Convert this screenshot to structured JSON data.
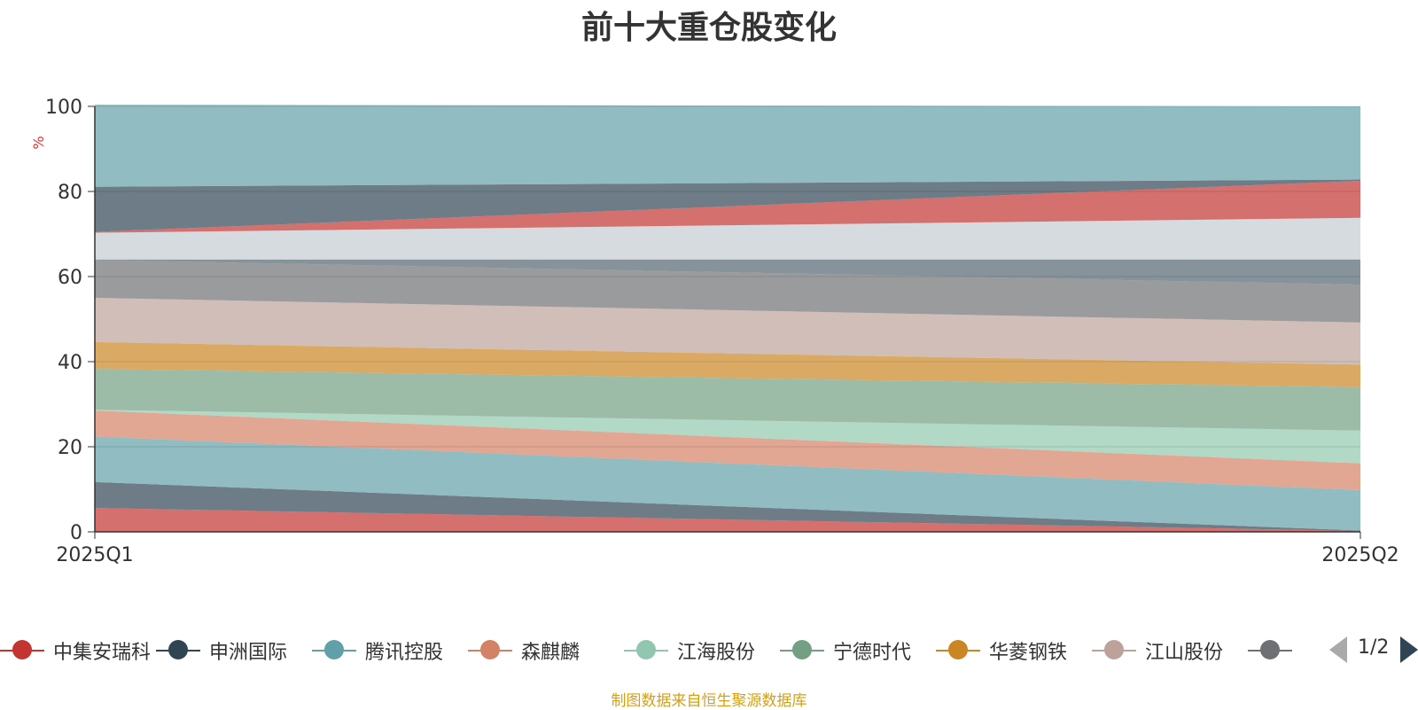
{
  "chart_data": {
    "type": "area",
    "title": "前十大重仓股变化",
    "ylabel": "%",
    "xlabel": "",
    "categories": [
      "2025Q1",
      "2025Q2"
    ],
    "ylim": [
      0,
      100
    ],
    "yticks": [
      0,
      20,
      40,
      60,
      80,
      100
    ],
    "stacked": true,
    "grid": true,
    "legend_position": "bottom",
    "series": [
      {
        "name": "中集安瑞科",
        "color": "#c23531",
        "values": [
          5.6,
          0.2
        ]
      },
      {
        "name": "申洲国际",
        "color": "#2f4554",
        "values": [
          6.1,
          0.1
        ]
      },
      {
        "name": "腾讯控股",
        "color": "#61a0a8",
        "values": [
          10.7,
          9.5
        ]
      },
      {
        "name": "森麒麟",
        "color": "#d48265",
        "values": [
          6.1,
          6.3
        ]
      },
      {
        "name": "江海股份",
        "color": "#91c7ae",
        "values": [
          0.2,
          7.7
        ]
      },
      {
        "name": "宁德时代",
        "color": "#749f83",
        "values": [
          9.6,
          10.2
        ]
      },
      {
        "name": "华菱钢铁",
        "color": "#ca8622",
        "values": [
          6.3,
          5.3
        ]
      },
      {
        "name": "江山股份",
        "color": "#bda29a",
        "values": [
          10.4,
          9.9
        ]
      },
      {
        "name": "",
        "color": "#6e7074",
        "values": [
          8.9,
          8.9
        ]
      },
      {
        "name": "",
        "color": "#546570",
        "values": [
          0.1,
          5.9
        ]
      },
      {
        "name": "",
        "color": "#c4ccd3",
        "values": [
          6.3,
          9.8
        ]
      },
      {
        "name": "",
        "color": "#c23531",
        "values": [
          0.2,
          8.7
        ]
      },
      {
        "name": "",
        "color": "#2f4554",
        "values": [
          10.6,
          0.3
        ]
      },
      {
        "name": "",
        "color": "#61a0a8",
        "values": [
          19.3,
          17.2
        ]
      }
    ]
  },
  "legend": {
    "items": [
      {
        "label": "中集安瑞科",
        "color": "#c23531"
      },
      {
        "label": "申洲国际",
        "color": "#2f4554"
      },
      {
        "label": "腾讯控股",
        "color": "#61a0a8"
      },
      {
        "label": "森麒麟",
        "color": "#d48265"
      },
      {
        "label": "江海股份",
        "color": "#91c7ae"
      },
      {
        "label": "宁德时代",
        "color": "#749f83"
      },
      {
        "label": "华菱钢铁",
        "color": "#ca8622"
      },
      {
        "label": "江山股份",
        "color": "#bda29a"
      },
      {
        "label": "",
        "color": "#6e7074"
      }
    ],
    "page_text": "1/2"
  },
  "source_note": "制图数据来自恒生聚源数据库"
}
